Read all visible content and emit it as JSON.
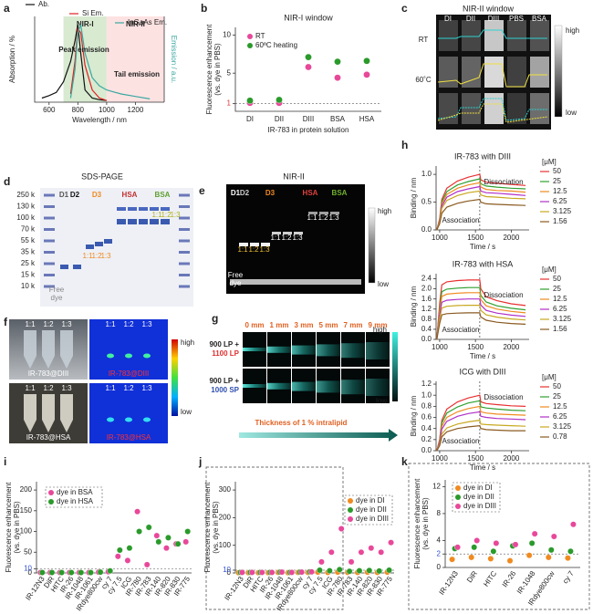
{
  "chart_data": [
    {
      "label": "a",
      "type": "line",
      "xlabel": "Wavelength / nm",
      "ylabel": "Absorption / %",
      "y2label": "Emission / a.u.",
      "x": [
        550,
        600,
        650,
        700,
        750,
        780,
        800,
        820,
        850,
        900,
        950,
        1000,
        1100,
        1200,
        1300
      ],
      "xlim": [
        500,
        1400
      ],
      "xticks": [
        600,
        800,
        1000,
        1200
      ],
      "ylim": [
        0,
        1.05
      ],
      "regions": [
        {
          "name": "NIR-I",
          "range": [
            700,
            1000
          ],
          "color": "#d8ead0"
        },
        {
          "name": "NIR-II",
          "range": [
            1000,
            1400
          ],
          "color": "#fde2e2"
        }
      ],
      "annotations": [
        "Peak emission",
        "Tail emission"
      ],
      "series": [
        {
          "name": "Ab.",
          "color": "#111111",
          "values": [
            0.05,
            0.08,
            0.12,
            0.25,
            0.5,
            0.75,
            0.95,
            0.6,
            0.15,
            0.05,
            0.03,
            0.02,
            null,
            null,
            null
          ]
        },
        {
          "name": "Si Em.",
          "color": "#e02020",
          "values": [
            null,
            null,
            null,
            null,
            0.1,
            0.5,
            0.9,
            0.85,
            0.45,
            0.15,
            0.05,
            0.02,
            null,
            null,
            null
          ]
        },
        {
          "name": "InGaAs Em.",
          "color": "#3aa8a0",
          "values": [
            null,
            null,
            null,
            null,
            0.05,
            0.4,
            0.85,
            0.95,
            0.6,
            0.3,
            0.2,
            0.15,
            0.1,
            0.07,
            0.04
          ]
        }
      ]
    },
    {
      "label": "b",
      "type": "scatter",
      "title": "NIR-I window",
      "ylabel": [
        "Fluorescence enhancement",
        "(vs. dye in PBS)"
      ],
      "xlabel": "IR-783 in protein solution",
      "categories": [
        "DI",
        "DII",
        "DIII",
        "BSA",
        "HSA"
      ],
      "ylim": [
        0,
        11
      ],
      "yticks": [
        1,
        5,
        10
      ],
      "ref_line": {
        "value": 1,
        "color": "#e03030"
      },
      "series": [
        {
          "name": "RT",
          "color": "#e8489a",
          "values": [
            1.1,
            1.1,
            5.8,
            4.4,
            4.8
          ]
        },
        {
          "name": "60ºC heating",
          "color": "#2a9a2a",
          "values": [
            1.4,
            1.5,
            7.1,
            6.5,
            6.6
          ]
        }
      ]
    },
    {
      "label": "h",
      "type": "line",
      "title": "IR-783 with DIII",
      "xlabel": "Time / s",
      "ylabel": "Binding / nm",
      "legend_title": "[μM]",
      "annotations": [
        "Association",
        "Dissociation"
      ],
      "vline": 1560,
      "x": [
        960,
        1000,
        1030,
        1100,
        1250,
        1400,
        1560,
        1575,
        1650,
        1800,
        2000,
        2200
      ],
      "xlim": [
        950,
        2250
      ],
      "xticks": [
        1000,
        1500,
        2000
      ],
      "ylim": [
        0,
        1.15
      ],
      "yticks": [
        {
          "value": 0,
          "label": "0.0"
        },
        0.5,
        {
          "value": 1,
          "label": "1.0"
        }
      ],
      "series": [
        {
          "name": "50",
          "color": "#e83030",
          "values": [
            0,
            0.2,
            0.55,
            0.75,
            0.88,
            0.95,
            1.0,
            0.9,
            0.86,
            0.84,
            0.82,
            0.8
          ]
        },
        {
          "name": "25",
          "color": "#30a030",
          "values": [
            0,
            0.18,
            0.51,
            0.69,
            0.81,
            0.87,
            0.92,
            0.83,
            0.79,
            0.77,
            0.75,
            0.74
          ]
        },
        {
          "name": "12.5",
          "color": "#f08a20",
          "values": [
            0,
            0.17,
            0.47,
            0.64,
            0.75,
            0.81,
            0.85,
            0.77,
            0.73,
            0.71,
            0.7,
            0.68
          ]
        },
        {
          "name": "6.25",
          "color": "#b030c8",
          "values": [
            0,
            0.16,
            0.43,
            0.59,
            0.69,
            0.74,
            0.78,
            0.7,
            0.67,
            0.66,
            0.64,
            0.62
          ]
        },
        {
          "name": "3.125",
          "color": "#c8a820",
          "values": [
            0,
            0.14,
            0.39,
            0.53,
            0.62,
            0.67,
            0.7,
            0.63,
            0.6,
            0.59,
            0.57,
            0.56
          ]
        },
        {
          "name": "1.56",
          "color": "#8a5a20",
          "values": [
            0,
            0.11,
            0.3,
            0.41,
            0.48,
            0.52,
            0.55,
            0.5,
            0.47,
            0.46,
            0.45,
            0.44
          ]
        }
      ]
    },
    {
      "type": "line",
      "title": "IR-783 with HSA",
      "xlabel": "Time / s",
      "ylabel": "Binding / nm",
      "legend_title": "[μM]",
      "annotations": [
        "Association",
        "Dissociation"
      ],
      "vline": 1560,
      "x": [
        960,
        1000,
        1030,
        1100,
        1250,
        1400,
        1560,
        1575,
        1650,
        1800,
        2000,
        2200
      ],
      "xlim": [
        950,
        2250
      ],
      "xticks": [
        1000,
        1500,
        2000
      ],
      "ylim": [
        0,
        2.6
      ],
      "yticks": [
        {
          "value": 0,
          "label": "0.0"
        },
        0.4,
        0.8,
        1.2,
        1.6,
        {
          "value": 2,
          "label": "2.0"
        },
        2.4
      ],
      "series": [
        {
          "name": "50",
          "color": "#e83030",
          "values": [
            0,
            1.41,
            2.16,
            2.28,
            2.33,
            2.35,
            2.35,
            2.0,
            1.69,
            1.53,
            1.41,
            1.34
          ]
        },
        {
          "name": "25",
          "color": "#30a030",
          "values": [
            0,
            1.23,
            1.89,
            1.99,
            2.03,
            2.05,
            2.05,
            1.74,
            1.48,
            1.33,
            1.23,
            1.17
          ]
        },
        {
          "name": "12.5",
          "color": "#f08a20",
          "values": [
            0,
            1.11,
            1.7,
            1.79,
            1.83,
            1.85,
            1.85,
            1.57,
            1.33,
            1.2,
            1.11,
            1.05
          ]
        },
        {
          "name": "6.25",
          "color": "#b030c8",
          "values": [
            0,
            0.96,
            1.47,
            1.55,
            1.58,
            1.6,
            1.6,
            1.36,
            1.15,
            1.04,
            0.96,
            0.91
          ]
        },
        {
          "name": "3.125",
          "color": "#c8a820",
          "values": [
            0,
            0.81,
            1.24,
            1.31,
            1.34,
            1.35,
            1.35,
            1.15,
            0.97,
            0.88,
            0.81,
            0.77
          ]
        },
        {
          "name": "1.56",
          "color": "#8a5a20",
          "values": [
            0,
            0.63,
            0.97,
            1.02,
            1.04,
            1.05,
            1.05,
            0.89,
            0.76,
            0.68,
            0.63,
            0.6
          ]
        }
      ]
    },
    {
      "type": "line",
      "title": "ICG with DIII",
      "xlabel": "Time / s",
      "ylabel": "Binding / nm",
      "legend_title": "[μM]",
      "annotations": [
        "Association",
        "Dissociation"
      ],
      "vline": 1560,
      "x": [
        960,
        1000,
        1030,
        1100,
        1250,
        1400,
        1560,
        1575,
        1650,
        1800,
        2000,
        2200
      ],
      "xlim": [
        950,
        2250
      ],
      "xticks": [
        1000,
        1500,
        2000
      ],
      "ylim": [
        0,
        1.25
      ],
      "yticks": [
        {
          "value": 0,
          "label": "0.0"
        },
        0.2,
        0.4,
        0.6,
        0.8,
        {
          "value": 1,
          "label": "1.0"
        },
        1.2
      ],
      "series": [
        {
          "name": "50",
          "color": "#e83030",
          "values": [
            0,
            0.2,
            0.55,
            0.75,
            0.88,
            0.95,
            1.0,
            0.88,
            0.85,
            0.83,
            0.81,
            0.8
          ]
        },
        {
          "name": "25",
          "color": "#30a030",
          "values": [
            0,
            0.18,
            0.5,
            0.68,
            0.79,
            0.86,
            0.9,
            0.79,
            0.77,
            0.75,
            0.73,
            0.72
          ]
        },
        {
          "name": "12.5",
          "color": "#f08a20",
          "values": [
            0,
            0.16,
            0.44,
            0.6,
            0.7,
            0.76,
            0.8,
            0.7,
            0.68,
            0.66,
            0.65,
            0.64
          ]
        },
        {
          "name": "6.25",
          "color": "#b030c8",
          "values": [
            0,
            0.14,
            0.39,
            0.53,
            0.62,
            0.67,
            0.7,
            0.62,
            0.6,
            0.58,
            0.57,
            0.56
          ]
        },
        {
          "name": "3.125",
          "color": "#c8a820",
          "values": [
            0,
            0.11,
            0.3,
            0.41,
            0.48,
            0.52,
            0.55,
            0.48,
            0.47,
            0.46,
            0.45,
            0.44
          ]
        },
        {
          "name": "0.78",
          "color": "#8a5a20",
          "values": [
            0,
            0.09,
            0.25,
            0.34,
            0.4,
            0.43,
            0.45,
            0.4,
            0.38,
            0.37,
            0.36,
            0.36
          ]
        }
      ]
    },
    {
      "label": "i",
      "type": "scatter",
      "ylabel": [
        "Fluorescence enhancement",
        "(vs. dye in PBS)"
      ],
      "categories": [
        "IR-12N3",
        "DiR",
        "HITC",
        "IR-26",
        "IR-1048",
        "IR-1061",
        "IRdye800cw",
        "cy 7",
        "cy 7.5",
        "ICG",
        "IR-780",
        "IR-783",
        "IR-140",
        "IR-820",
        "IR-830",
        "IR-775"
      ],
      "ylim": [
        0,
        220
      ],
      "yticks": [
        0,
        10,
        50,
        100,
        150,
        200
      ],
      "ref_line": {
        "value": 10,
        "color": "#3050d0"
      },
      "series": [
        {
          "name": "dye in BSA",
          "color": "#e8489a",
          "values": [
            1,
            1,
            1,
            1,
            1,
            1,
            2,
            3,
            40,
            30,
            148,
            20,
            90,
            60,
            70,
            75
          ]
        },
        {
          "name": "dye in HSA",
          "color": "#2a9a2a",
          "values": [
            1,
            1,
            1,
            1,
            1,
            1,
            2,
            5,
            55,
            60,
            100,
            110,
            75,
            85,
            70,
            100
          ]
        }
      ]
    },
    {
      "label": "j",
      "type": "scatter",
      "ylabel": [
        "Fluorescence enhancement",
        "(vs. dye in PBS)"
      ],
      "categories": [
        "IR-12N3",
        "DiR",
        "HITC",
        "IR-26",
        "IR-1048",
        "IR-1061",
        "IRdye800cw",
        "cy 7",
        "cy 7.5",
        "ICG",
        "IR-780",
        "IR-783",
        "IR-140",
        "IR-820",
        "IR-830",
        "IR-775"
      ],
      "ylim": [
        0,
        330
      ],
      "yticks": [
        0,
        10,
        100,
        200,
        300
      ],
      "ref_line": {
        "value": 10,
        "color": "#3050d0"
      },
      "series": [
        {
          "name": "dye in DI",
          "color": "#f08a20",
          "values": [
            1,
            1,
            1,
            1,
            2,
            1,
            2,
            2,
            3,
            2,
            3,
            2,
            2,
            3,
            2,
            3
          ]
        },
        {
          "name": "dye in DII",
          "color": "#2a9a2a",
          "values": [
            2,
            2,
            2,
            2,
            3,
            2,
            3,
            4,
            10,
            8,
            12,
            6,
            8,
            9,
            7,
            10
          ]
        },
        {
          "name": "dye in DIII",
          "color": "#e8489a",
          "values": [
            2,
            2,
            2,
            2,
            3,
            2,
            3,
            4,
            40,
            75,
            160,
            40,
            75,
            90,
            75,
            110
          ]
        }
      ]
    },
    {
      "label": "k",
      "type": "scatter",
      "ylabel": [
        "Fluorescence enhancement",
        "(vs. dye in PBS)"
      ],
      "categories": [
        "IR-12N3",
        "DiR",
        "HITC",
        "IR-26",
        "IR-1048",
        "IRdye800cw",
        "cy 7"
      ],
      "ylim": [
        0,
        13
      ],
      "yticks": [
        0,
        2,
        4,
        8,
        12
      ],
      "ref_line": {
        "value": 2,
        "color": "#3050d0"
      },
      "series": [
        {
          "name": "dye in DI",
          "color": "#f08a20",
          "values": [
            1.2,
            1.5,
            1.3,
            1.0,
            1.8,
            1.5,
            1.4
          ]
        },
        {
          "name": "dye in DII",
          "color": "#2a9a2a",
          "values": [
            2.8,
            3.0,
            2.4,
            3.2,
            3.6,
            2.6,
            2.4
          ]
        },
        {
          "name": "dye in DIII",
          "color": "#e8489a",
          "values": [
            3.0,
            4.0,
            3.6,
            3.4,
            5.0,
            4.6,
            6.4
          ]
        }
      ]
    }
  ],
  "panels": {
    "c": {
      "label": "c",
      "title": "NIR-II window",
      "columns": [
        "DI",
        "DII",
        "DIII",
        "PBS",
        "BSA"
      ],
      "rows": [
        "RT",
        "60˚C"
      ],
      "scale": [
        "high",
        "low"
      ]
    },
    "d": {
      "label": "d",
      "title": "SDS-PAGE",
      "ladder": [
        "250 k",
        "130 k",
        "100 k",
        "70 k",
        "55 k",
        "35 k",
        "25 k",
        "15 k",
        "10 k"
      ],
      "lanes": [
        "D1",
        "D2",
        "D3",
        "HSA",
        "BSA"
      ],
      "ratios": [
        "1:1",
        "1:2",
        "1:3"
      ],
      "free": [
        "Free",
        "dye"
      ]
    },
    "e": {
      "label": "e",
      "title": "NIR-II",
      "lanes": [
        "D1",
        "D2",
        "D3",
        "HSA",
        "BSA"
      ],
      "ratios": [
        "1:1",
        "1:2",
        "1:3"
      ],
      "free": [
        "Free",
        "dye"
      ],
      "scale": [
        "high",
        "low"
      ]
    },
    "f": {
      "label": "f",
      "ratios": [
        "1:1",
        "1:2",
        "1:3"
      ],
      "samples": [
        "IR-783@DIII",
        "IR-783@HSA"
      ],
      "scale": [
        "high",
        "low"
      ]
    },
    "g": {
      "label": "g",
      "thickness": [
        "0 mm",
        "1 mm",
        "3 mm",
        "5 mm",
        "7 mm",
        "9 mm"
      ],
      "filters": [
        [
          "900 LP +",
          "1100 LP"
        ],
        [
          "900 LP +",
          "1000 SP"
        ]
      ],
      "scale": [
        "high",
        "low"
      ],
      "caption": "Thickness of 1 % intralipid"
    }
  }
}
